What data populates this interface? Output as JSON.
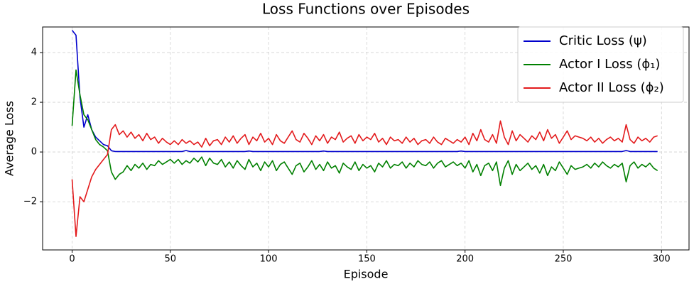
{
  "chart_data": {
    "type": "line",
    "title": "Loss Functions over Episodes",
    "x_label": "Episode",
    "y_label": "Average Loss",
    "xlim": [
      -15,
      314
    ],
    "ylim": [
      -3.94,
      5.03
    ],
    "xticks": [
      0,
      50,
      100,
      150,
      200,
      250,
      300
    ],
    "yticks": [
      {
        "value": -2,
        "label": "−2"
      },
      0,
      2,
      4
    ],
    "grid": true,
    "legend": "upper right",
    "x": [
      0,
      2,
      4,
      6,
      8,
      10,
      12,
      14,
      16,
      18,
      20,
      22,
      24,
      26,
      28,
      30,
      32,
      34,
      36,
      38,
      40,
      42,
      44,
      46,
      48,
      50,
      52,
      54,
      56,
      58,
      60,
      62,
      64,
      66,
      68,
      70,
      72,
      74,
      76,
      78,
      80,
      82,
      84,
      86,
      88,
      90,
      92,
      94,
      96,
      98,
      100,
      102,
      104,
      106,
      108,
      110,
      112,
      114,
      116,
      118,
      120,
      122,
      124,
      126,
      128,
      130,
      132,
      134,
      136,
      138,
      140,
      142,
      144,
      146,
      148,
      150,
      152,
      154,
      156,
      158,
      160,
      162,
      164,
      166,
      168,
      170,
      172,
      174,
      176,
      178,
      180,
      182,
      184,
      186,
      188,
      190,
      192,
      194,
      196,
      198,
      200,
      202,
      204,
      206,
      208,
      210,
      212,
      214,
      216,
      218,
      220,
      222,
      224,
      226,
      228,
      230,
      232,
      234,
      236,
      238,
      240,
      242,
      244,
      246,
      248,
      250,
      252,
      254,
      256,
      258,
      260,
      262,
      264,
      266,
      268,
      270,
      272,
      274,
      276,
      278,
      280,
      282,
      284,
      286,
      288,
      290,
      292,
      294,
      296,
      298
    ],
    "series": [
      {
        "name": "Critic Loss (ψ)",
        "color": "#0000cc",
        "values": [
          4.9,
          4.7,
          2.2,
          1.0,
          1.5,
          0.9,
          0.6,
          0.45,
          0.3,
          0.25,
          0.05,
          0.02,
          0.02,
          0.02,
          0.02,
          0.02,
          0.02,
          0.02,
          0.02,
          0.02,
          0.02,
          0.02,
          0.02,
          0.02,
          0.02,
          0.02,
          0.02,
          0.02,
          0.02,
          0.06,
          0.02,
          0.02,
          0.02,
          0.02,
          0.02,
          0.02,
          0.02,
          0.02,
          0.02,
          0.02,
          0.02,
          0.02,
          0.02,
          0.02,
          0.02,
          0.04,
          0.02,
          0.02,
          0.02,
          0.02,
          0.02,
          0.02,
          0.02,
          0.02,
          0.02,
          0.02,
          0.02,
          0.02,
          0.02,
          0.02,
          0.02,
          0.02,
          0.02,
          0.02,
          0.04,
          0.02,
          0.02,
          0.02,
          0.02,
          0.02,
          0.02,
          0.02,
          0.02,
          0.02,
          0.02,
          0.02,
          0.02,
          0.02,
          0.02,
          0.02,
          0.02,
          0.02,
          0.02,
          0.02,
          0.02,
          0.02,
          0.02,
          0.02,
          0.02,
          0.02,
          0.02,
          0.02,
          0.02,
          0.02,
          0.02,
          0.02,
          0.02,
          0.02,
          0.02,
          0.04,
          0.02,
          0.02,
          0.02,
          0.02,
          0.02,
          0.02,
          0.02,
          0.02,
          0.02,
          0.02,
          0.02,
          0.02,
          0.02,
          0.02,
          0.02,
          0.02,
          0.02,
          0.02,
          0.02,
          0.02,
          0.02,
          0.02,
          0.02,
          0.02,
          0.02,
          0.02,
          0.02,
          0.02,
          0.02,
          0.02,
          0.02,
          0.02,
          0.02,
          0.02,
          0.02,
          0.02,
          0.02,
          0.02,
          0.02,
          0.02,
          0.02,
          0.06,
          0.02,
          0.02,
          0.02,
          0.02,
          0.02,
          0.02,
          0.02,
          0.02
        ]
      },
      {
        "name": "Actor I Loss (ϕ₁)",
        "color": "#008000",
        "values": [
          1.05,
          3.3,
          2.3,
          1.5,
          1.3,
          0.9,
          0.5,
          0.3,
          0.2,
          0.05,
          -0.8,
          -1.1,
          -0.9,
          -0.8,
          -0.55,
          -0.75,
          -0.5,
          -0.65,
          -0.45,
          -0.7,
          -0.5,
          -0.55,
          -0.35,
          -0.5,
          -0.4,
          -0.3,
          -0.45,
          -0.3,
          -0.5,
          -0.35,
          -0.45,
          -0.25,
          -0.4,
          -0.2,
          -0.55,
          -0.25,
          -0.45,
          -0.5,
          -0.3,
          -0.6,
          -0.4,
          -0.65,
          -0.35,
          -0.55,
          -0.7,
          -0.3,
          -0.6,
          -0.45,
          -0.75,
          -0.4,
          -0.6,
          -0.35,
          -0.75,
          -0.5,
          -0.4,
          -0.65,
          -0.9,
          -0.55,
          -0.45,
          -0.8,
          -0.6,
          -0.35,
          -0.7,
          -0.5,
          -0.75,
          -0.4,
          -0.65,
          -0.55,
          -0.85,
          -0.45,
          -0.6,
          -0.7,
          -0.4,
          -0.75,
          -0.5,
          -0.65,
          -0.55,
          -0.8,
          -0.45,
          -0.6,
          -0.35,
          -0.65,
          -0.5,
          -0.55,
          -0.4,
          -0.65,
          -0.45,
          -0.6,
          -0.35,
          -0.5,
          -0.55,
          -0.4,
          -0.65,
          -0.45,
          -0.35,
          -0.6,
          -0.5,
          -0.4,
          -0.55,
          -0.45,
          -0.65,
          -0.35,
          -0.8,
          -0.5,
          -0.95,
          -0.55,
          -0.45,
          -0.75,
          -0.4,
          -1.35,
          -0.65,
          -0.35,
          -0.9,
          -0.5,
          -0.75,
          -0.6,
          -0.45,
          -0.7,
          -0.55,
          -0.85,
          -0.5,
          -0.95,
          -0.6,
          -0.75,
          -0.4,
          -0.65,
          -0.9,
          -0.55,
          -0.7,
          -0.65,
          -0.6,
          -0.5,
          -0.65,
          -0.45,
          -0.6,
          -0.4,
          -0.55,
          -0.65,
          -0.5,
          -0.6,
          -0.45,
          -1.2,
          -0.55,
          -0.4,
          -0.65,
          -0.5,
          -0.6,
          -0.45,
          -0.65,
          -0.75
        ]
      },
      {
        "name": "Actor II Loss (ϕ₂)",
        "color": "#e31a1c",
        "values": [
          -1.1,
          -3.4,
          -1.8,
          -2.0,
          -1.5,
          -1.0,
          -0.7,
          -0.5,
          -0.3,
          -0.1,
          0.9,
          1.1,
          0.7,
          0.85,
          0.6,
          0.8,
          0.55,
          0.7,
          0.45,
          0.75,
          0.5,
          0.6,
          0.35,
          0.55,
          0.4,
          0.3,
          0.45,
          0.3,
          0.5,
          0.35,
          0.45,
          0.3,
          0.4,
          0.2,
          0.55,
          0.25,
          0.45,
          0.5,
          0.3,
          0.6,
          0.4,
          0.65,
          0.35,
          0.55,
          0.7,
          0.3,
          0.6,
          0.45,
          0.75,
          0.4,
          0.55,
          0.3,
          0.7,
          0.45,
          0.35,
          0.6,
          0.85,
          0.5,
          0.4,
          0.75,
          0.55,
          0.3,
          0.65,
          0.45,
          0.7,
          0.35,
          0.6,
          0.5,
          0.8,
          0.4,
          0.55,
          0.65,
          0.35,
          0.7,
          0.45,
          0.6,
          0.5,
          0.75,
          0.4,
          0.55,
          0.3,
          0.6,
          0.45,
          0.5,
          0.35,
          0.6,
          0.4,
          0.55,
          0.3,
          0.45,
          0.5,
          0.35,
          0.6,
          0.4,
          0.3,
          0.55,
          0.45,
          0.35,
          0.5,
          0.4,
          0.6,
          0.3,
          0.75,
          0.45,
          0.9,
          0.5,
          0.4,
          0.7,
          0.35,
          1.25,
          0.6,
          0.3,
          0.85,
          0.45,
          0.7,
          0.55,
          0.4,
          0.65,
          0.5,
          0.8,
          0.45,
          0.9,
          0.55,
          0.7,
          0.35,
          0.6,
          0.85,
          0.5,
          0.65,
          0.6,
          0.55,
          0.45,
          0.6,
          0.4,
          0.55,
          0.35,
          0.5,
          0.6,
          0.45,
          0.55,
          0.4,
          1.1,
          0.5,
          0.35,
          0.6,
          0.45,
          0.55,
          0.4,
          0.6,
          0.65
        ]
      }
    ]
  }
}
